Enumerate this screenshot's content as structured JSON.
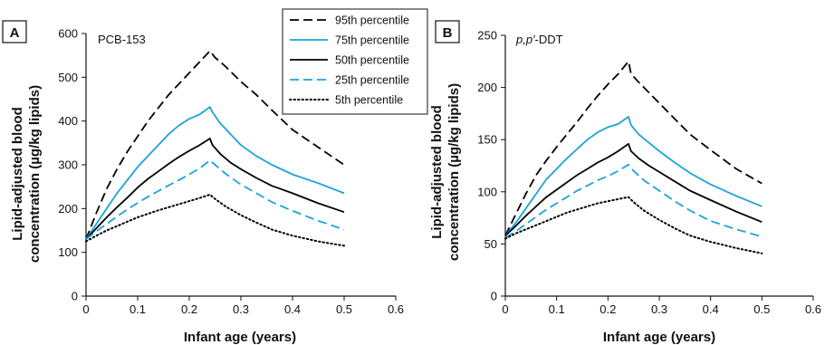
{
  "chart_data": [
    {
      "type": "line",
      "panel_label": "A",
      "title": "PCB-153",
      "xlabel": "Infant age (years)",
      "ylabel_line1": "Lipid-adjusted blood",
      "ylabel_line2": "concentration (µg/kg lipids)",
      "xlim": [
        0,
        0.6
      ],
      "ylim": [
        0,
        600
      ],
      "xticks": [
        "0",
        "0.1",
        "0.2",
        "0.3",
        "0.4",
        "0.5",
        "0.6"
      ],
      "yticks": [
        "0",
        "100",
        "200",
        "300",
        "400",
        "500",
        "600"
      ],
      "grid": false,
      "legend": {
        "placement": "top-right"
      },
      "series": [
        {
          "name": "95th percentile",
          "color": "#000000",
          "style": "dashed",
          "x": [
            0,
            0.02,
            0.04,
            0.06,
            0.08,
            0.1,
            0.12,
            0.14,
            0.16,
            0.18,
            0.2,
            0.22,
            0.24,
            0.25,
            0.27,
            0.3,
            0.33,
            0.36,
            0.4,
            0.45,
            0.5
          ],
          "y": [
            130,
            190,
            245,
            290,
            330,
            365,
            400,
            430,
            460,
            485,
            510,
            535,
            560,
            545,
            525,
            490,
            460,
            425,
            380,
            340,
            300
          ]
        },
        {
          "name": "75th percentile",
          "color": "#1aa3dc",
          "style": "solid",
          "x": [
            0,
            0.02,
            0.04,
            0.06,
            0.08,
            0.1,
            0.12,
            0.14,
            0.16,
            0.18,
            0.2,
            0.22,
            0.24,
            0.245,
            0.26,
            0.28,
            0.3,
            0.33,
            0.36,
            0.4,
            0.45,
            0.5
          ],
          "y": [
            130,
            165,
            200,
            235,
            265,
            295,
            320,
            345,
            370,
            390,
            405,
            415,
            432,
            420,
            395,
            370,
            345,
            320,
            300,
            278,
            258,
            235
          ]
        },
        {
          "name": "50th percentile",
          "color": "#000000",
          "style": "solid",
          "x": [
            0,
            0.02,
            0.04,
            0.06,
            0.08,
            0.1,
            0.12,
            0.14,
            0.16,
            0.18,
            0.2,
            0.22,
            0.24,
            0.245,
            0.26,
            0.28,
            0.3,
            0.33,
            0.36,
            0.4,
            0.45,
            0.5
          ],
          "y": [
            130,
            155,
            180,
            203,
            225,
            248,
            268,
            285,
            302,
            318,
            332,
            345,
            360,
            345,
            325,
            305,
            290,
            270,
            252,
            235,
            212,
            192
          ]
        },
        {
          "name": "25th percentile",
          "color": "#1aa3dc",
          "style": "dashed",
          "x": [
            0,
            0.02,
            0.04,
            0.06,
            0.08,
            0.1,
            0.12,
            0.14,
            0.16,
            0.18,
            0.2,
            0.22,
            0.24,
            0.25,
            0.27,
            0.3,
            0.33,
            0.36,
            0.4,
            0.45,
            0.5
          ],
          "y": [
            130,
            148,
            165,
            182,
            198,
            213,
            227,
            240,
            253,
            265,
            278,
            292,
            310,
            300,
            280,
            255,
            235,
            215,
            195,
            172,
            152
          ]
        },
        {
          "name": "5th percentile",
          "color": "#000000",
          "style": "dotted",
          "x": [
            0,
            0.02,
            0.04,
            0.06,
            0.08,
            0.1,
            0.12,
            0.14,
            0.16,
            0.18,
            0.2,
            0.22,
            0.24,
            0.25,
            0.27,
            0.3,
            0.33,
            0.36,
            0.4,
            0.45,
            0.5
          ],
          "y": [
            125,
            138,
            150,
            160,
            170,
            180,
            188,
            196,
            203,
            210,
            217,
            224,
            232,
            222,
            205,
            185,
            168,
            152,
            138,
            125,
            115
          ]
        }
      ]
    },
    {
      "type": "line",
      "panel_label": "B",
      "title_italic": "p,p′",
      "title_rest": "-DDT",
      "xlabel": "Infant age (years)",
      "ylabel_line1": "Lipid-adjusted blood",
      "ylabel_line2": "concentration (µg/kg lipids)",
      "xlim": [
        0,
        0.6
      ],
      "ylim": [
        0,
        250
      ],
      "xticks": [
        "0",
        "0.1",
        "0.2",
        "0.3",
        "0.4",
        "0.5",
        "0.6"
      ],
      "yticks": [
        "0",
        "50",
        "100",
        "150",
        "200",
        "250"
      ],
      "grid": false,
      "series": [
        {
          "name": "95th percentile",
          "color": "#000000",
          "style": "dashed",
          "x": [
            0,
            0.02,
            0.04,
            0.06,
            0.08,
            0.1,
            0.12,
            0.14,
            0.16,
            0.18,
            0.2,
            0.22,
            0.24,
            0.245,
            0.26,
            0.28,
            0.3,
            0.33,
            0.36,
            0.4,
            0.45,
            0.5
          ],
          "y": [
            58,
            78,
            98,
            116,
            130,
            143,
            155,
            167,
            180,
            192,
            203,
            213,
            225,
            213,
            205,
            195,
            185,
            170,
            155,
            140,
            122,
            108
          ]
        },
        {
          "name": "75th percentile",
          "color": "#1aa3dc",
          "style": "solid",
          "x": [
            0,
            0.02,
            0.04,
            0.06,
            0.08,
            0.1,
            0.12,
            0.14,
            0.16,
            0.18,
            0.2,
            0.22,
            0.24,
            0.245,
            0.26,
            0.28,
            0.3,
            0.33,
            0.36,
            0.4,
            0.45,
            0.5
          ],
          "y": [
            58,
            70,
            84,
            98,
            112,
            122,
            132,
            141,
            150,
            157,
            162,
            165,
            172,
            164,
            155,
            147,
            139,
            128,
            118,
            107,
            96,
            86
          ]
        },
        {
          "name": "50th percentile",
          "color": "#000000",
          "style": "solid",
          "x": [
            0,
            0.02,
            0.04,
            0.06,
            0.08,
            0.1,
            0.12,
            0.14,
            0.16,
            0.18,
            0.2,
            0.22,
            0.24,
            0.245,
            0.26,
            0.28,
            0.3,
            0.33,
            0.36,
            0.4,
            0.45,
            0.5
          ],
          "y": [
            58,
            67,
            77,
            86,
            95,
            102,
            109,
            116,
            122,
            128,
            133,
            139,
            146,
            139,
            132,
            125,
            119,
            110,
            101,
            92,
            81,
            71
          ]
        },
        {
          "name": "25th percentile",
          "color": "#1aa3dc",
          "style": "dashed",
          "x": [
            0,
            0.02,
            0.04,
            0.06,
            0.08,
            0.1,
            0.12,
            0.14,
            0.16,
            0.18,
            0.2,
            0.22,
            0.24,
            0.25,
            0.27,
            0.3,
            0.33,
            0.36,
            0.4,
            0.45,
            0.5
          ],
          "y": [
            56,
            62,
            69,
            76,
            83,
            89,
            95,
            101,
            106,
            111,
            115,
            120,
            126,
            120,
            111,
            101,
            91,
            82,
            72,
            64,
            57
          ]
        },
        {
          "name": "5th percentile",
          "color": "#000000",
          "style": "dotted",
          "x": [
            0,
            0.02,
            0.04,
            0.06,
            0.08,
            0.1,
            0.12,
            0.14,
            0.16,
            0.18,
            0.2,
            0.22,
            0.24,
            0.25,
            0.27,
            0.3,
            0.33,
            0.36,
            0.4,
            0.45,
            0.5
          ],
          "y": [
            55,
            60,
            64,
            68,
            72,
            76,
            80,
            83,
            86,
            89,
            91,
            93,
            95,
            90,
            82,
            73,
            65,
            58,
            52,
            46,
            41
          ]
        }
      ]
    }
  ]
}
